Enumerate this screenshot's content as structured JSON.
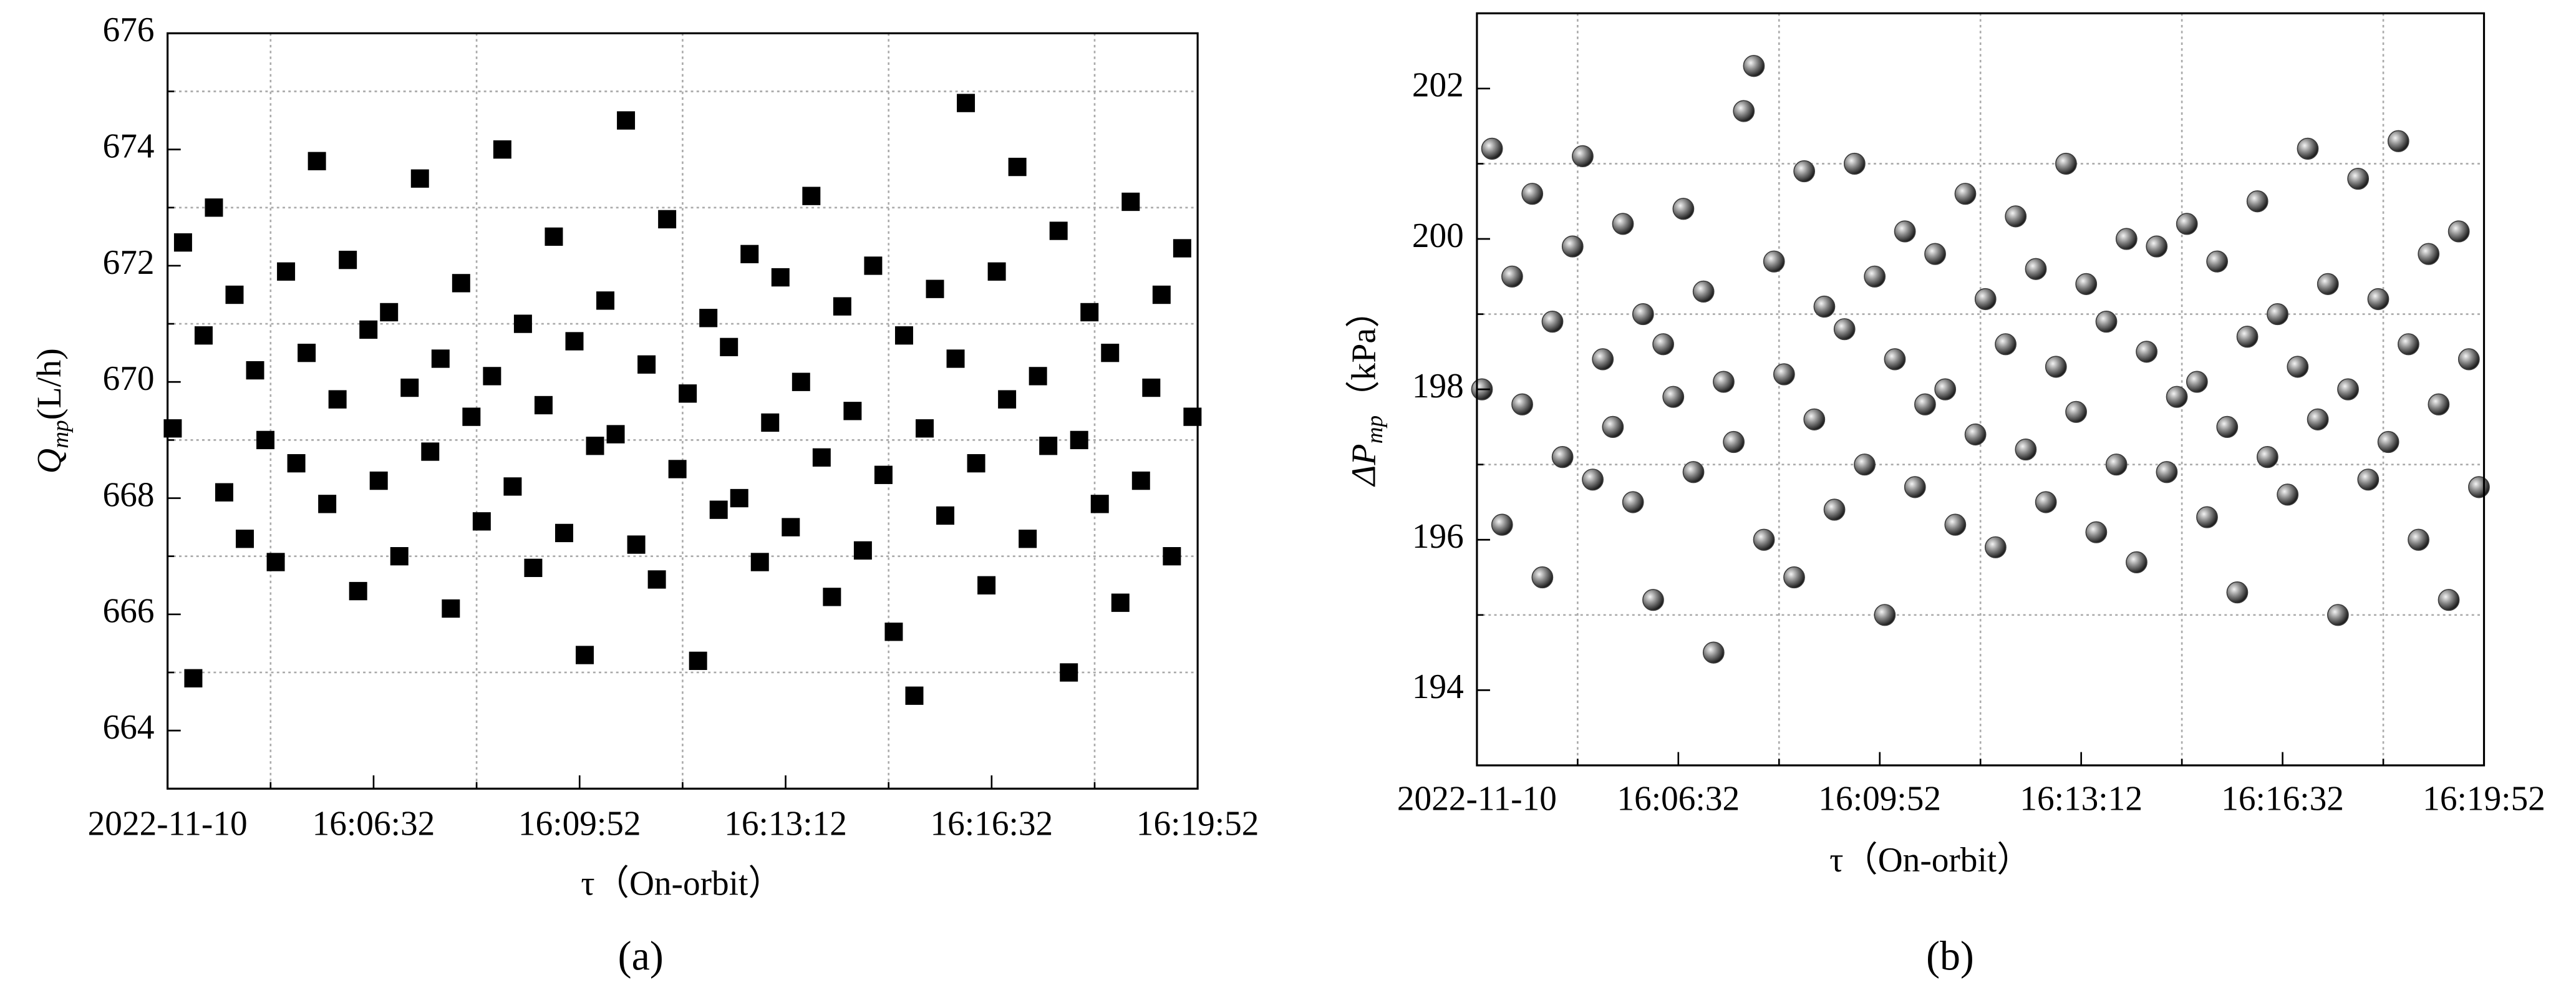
{
  "chart_data": [
    {
      "type": "scatter",
      "marker": "square",
      "color": "#000000",
      "grid": true,
      "y_label": "Q",
      "y_label_sub": "mp",
      "y_label_unit": "(L/h)",
      "x_label": "τ（On-orbit）",
      "caption": "(a)",
      "xlim": [
        57792,
        58792
      ],
      "xticks": [
        {
          "value": 57792,
          "label": "2022-11-10"
        },
        {
          "value": 57992,
          "label": "16:06:32"
        },
        {
          "value": 58192,
          "label": "16:09:52"
        },
        {
          "value": 58392,
          "label": "16:13:12"
        },
        {
          "value": 58592,
          "label": "16:16:32"
        },
        {
          "value": 58792,
          "label": "16:19:52"
        }
      ],
      "minor_xticks": [
        57892,
        58092,
        58292,
        58492,
        58692
      ],
      "ylim": [
        663,
        676
      ],
      "yticks": [
        664,
        666,
        668,
        670,
        672,
        674,
        676
      ],
      "minor_yticks": [
        665,
        667,
        669,
        671,
        673,
        675
      ],
      "x": [
        57797,
        57807,
        57817,
        57827,
        57837,
        57847,
        57857,
        57867,
        57877,
        57887,
        57897,
        57907,
        57917,
        57927,
        57937,
        57947,
        57957,
        57967,
        57977,
        57987,
        57997,
        58007,
        58017,
        58027,
        58037,
        58047,
        58057,
        58067,
        58077,
        58087,
        58097,
        58107,
        58117,
        58127,
        58137,
        58147,
        58157,
        58167,
        58177,
        58187,
        58197,
        58207,
        58217,
        58227,
        58237,
        58247,
        58257,
        58267,
        58277,
        58287,
        58297,
        58307,
        58317,
        58327,
        58337,
        58347,
        58357,
        58367,
        58377,
        58387,
        58397,
        58407,
        58417,
        58427,
        58437,
        58447,
        58457,
        58467,
        58477,
        58487,
        58497,
        58507,
        58517,
        58527,
        58537,
        58547,
        58557,
        58567,
        58577,
        58587,
        58597,
        58607,
        58617,
        58627,
        58637,
        58647,
        58657,
        58667,
        58677,
        58687,
        58697,
        58707,
        58717,
        58727,
        58737,
        58747,
        58757,
        58767,
        58777,
        58787
      ],
      "values": [
        669.2,
        672.4,
        664.9,
        670.8,
        673.0,
        668.1,
        671.5,
        667.3,
        670.2,
        669.0,
        666.9,
        671.9,
        668.6,
        670.5,
        673.8,
        667.9,
        669.7,
        672.1,
        666.4,
        670.9,
        668.3,
        671.2,
        667.0,
        669.9,
        673.5,
        668.8,
        670.4,
        666.1,
        671.7,
        669.4,
        667.6,
        670.1,
        674.0,
        668.2,
        671.0,
        666.8,
        669.6,
        672.5,
        667.4,
        670.7,
        665.3,
        668.9,
        671.4,
        669.1,
        674.5,
        667.2,
        670.3,
        666.6,
        672.8,
        668.5,
        669.8,
        665.2,
        671.1,
        667.8,
        670.6,
        668.0,
        672.2,
        666.9,
        669.3,
        671.8,
        667.5,
        670.0,
        673.2,
        668.7,
        666.3,
        671.3,
        669.5,
        667.1,
        672.0,
        668.4,
        665.7,
        670.8,
        664.6,
        669.2,
        671.6,
        667.7,
        670.4,
        674.8,
        668.6,
        666.5,
        671.9,
        669.7,
        673.7,
        667.3,
        670.1,
        668.9,
        672.6,
        665.0,
        669.0,
        671.2,
        667.9,
        670.5,
        666.2,
        673.1,
        668.3,
        669.9,
        671.5,
        667.0,
        672.3,
        669.4
      ]
    },
    {
      "type": "scatter",
      "marker": "sphere",
      "color": "#3a3a3a",
      "grid": true,
      "y_label": "ΔP",
      "y_label_sub": "mp",
      "y_label_unit": "（kPa）",
      "x_label": "τ（On-orbit）",
      "caption": "(b)",
      "xlim": [
        57792,
        58792
      ],
      "xticks": [
        {
          "value": 57792,
          "label": "2022-11-10"
        },
        {
          "value": 57992,
          "label": "16:06:32"
        },
        {
          "value": 58192,
          "label": "16:09:52"
        },
        {
          "value": 58392,
          "label": "16:13:12"
        },
        {
          "value": 58592,
          "label": "16:16:32"
        },
        {
          "value": 58792,
          "label": "16:19:52"
        }
      ],
      "minor_xticks": [
        57892,
        58092,
        58292,
        58492,
        58692
      ],
      "ylim": [
        193,
        203
      ],
      "yticks": [
        194,
        196,
        198,
        200,
        202
      ],
      "minor_yticks": [
        195,
        197,
        199,
        201
      ],
      "x": [
        57797,
        57807,
        57817,
        57827,
        57837,
        57847,
        57857,
        57867,
        57877,
        57887,
        57897,
        57907,
        57917,
        57927,
        57937,
        57947,
        57957,
        57967,
        57977,
        57987,
        57997,
        58007,
        58017,
        58027,
        58037,
        58047,
        58057,
        58067,
        58077,
        58087,
        58097,
        58107,
        58117,
        58127,
        58137,
        58147,
        58157,
        58167,
        58177,
        58187,
        58197,
        58207,
        58217,
        58227,
        58237,
        58247,
        58257,
        58267,
        58277,
        58287,
        58297,
        58307,
        58317,
        58327,
        58337,
        58347,
        58357,
        58367,
        58377,
        58387,
        58397,
        58407,
        58417,
        58427,
        58437,
        58447,
        58457,
        58467,
        58477,
        58487,
        58497,
        58507,
        58517,
        58527,
        58537,
        58547,
        58557,
        58567,
        58577,
        58587,
        58597,
        58607,
        58617,
        58627,
        58637,
        58647,
        58657,
        58667,
        58677,
        58687,
        58697,
        58707,
        58717,
        58727,
        58737,
        58747,
        58757,
        58767,
        58777,
        58787
      ],
      "values": [
        198.0,
        201.2,
        196.2,
        199.5,
        197.8,
        200.6,
        195.5,
        198.9,
        197.1,
        199.9,
        201.1,
        196.8,
        198.4,
        197.5,
        200.2,
        196.5,
        199.0,
        195.2,
        198.6,
        197.9,
        200.4,
        196.9,
        199.3,
        194.5,
        198.1,
        197.3,
        201.7,
        202.3,
        196.0,
        199.7,
        198.2,
        195.5,
        200.9,
        197.6,
        199.1,
        196.4,
        198.8,
        201.0,
        197.0,
        199.5,
        195.0,
        198.4,
        200.1,
        196.7,
        197.8,
        199.8,
        198.0,
        196.2,
        200.6,
        197.4,
        199.2,
        195.9,
        198.6,
        200.3,
        197.2,
        199.6,
        196.5,
        198.3,
        201.0,
        197.7,
        199.4,
        196.1,
        198.9,
        197.0,
        200.0,
        195.7,
        198.5,
        199.9,
        196.9,
        197.9,
        200.2,
        198.1,
        196.3,
        199.7,
        197.5,
        195.3,
        198.7,
        200.5,
        197.1,
        199.0,
        196.6,
        198.3,
        201.2,
        197.6,
        199.4,
        195.0,
        198.0,
        200.8,
        196.8,
        199.2,
        197.3,
        201.3,
        198.6,
        196.0,
        199.8,
        197.8,
        195.2,
        200.1,
        198.4,
        196.7
      ]
    }
  ]
}
